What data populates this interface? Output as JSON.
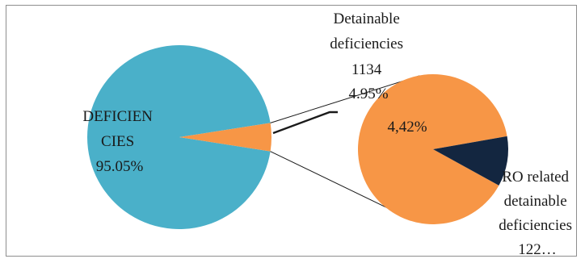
{
  "chart_data": {
    "type": "pie",
    "subtype": "pie-of-pie",
    "colors": {
      "main_slice": "#4ab0c9",
      "detainable": "#f79646",
      "ro_related": "#132640",
      "connector": "#1a1a1a"
    },
    "main_pie": {
      "slices": [
        {
          "key": "deficiencies",
          "label_lines": [
            "DEFICIEN",
            "CIES"
          ],
          "percent_label": "95.05%",
          "percent": 95.05
        },
        {
          "key": "detainable",
          "label_lines": [
            "Detainable",
            "deficiencies",
            "1134"
          ],
          "value": 1134,
          "percent_label": "4.95%",
          "percent": 4.95
        }
      ]
    },
    "secondary_pie": {
      "exploded_from": "detainable",
      "slices": [
        {
          "key": "other_detainable",
          "percent_label": "4,42%",
          "percent": 89.2
        },
        {
          "key": "ro_related",
          "label_lines": [
            "RO related",
            "detainable",
            "deficiencies",
            "122…"
          ],
          "percent": 10.8
        }
      ]
    }
  }
}
